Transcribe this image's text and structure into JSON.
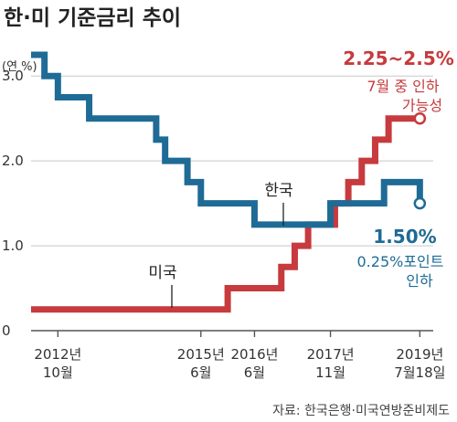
{
  "title": "한·미 기준금리 추이",
  "source": "자료: 한국은행·미국연방준비제도",
  "colors": {
    "korea": "#1e6b96",
    "usa": "#c73a3d",
    "grid": "#c8c8c8",
    "axis": "#555555"
  },
  "chart_data": {
    "type": "line",
    "step": true,
    "unit_label": "(연 %)",
    "ylim": [
      0,
      3.25
    ],
    "yticks": [
      0,
      1.0,
      2.0,
      3.0
    ],
    "ytick_labels": [
      "0",
      "1.0",
      "2.0",
      "3.0"
    ],
    "grid": "horizontal",
    "xlim": [
      "2012-04",
      "2019-10"
    ],
    "xticks": [
      {
        "x": "2012-10",
        "lines": [
          "2012년",
          "10월"
        ]
      },
      {
        "x": "2015-06",
        "lines": [
          "2015년",
          "6월"
        ]
      },
      {
        "x": "2016-06",
        "lines": [
          "2016년",
          "6월"
        ]
      },
      {
        "x": "2017-11",
        "lines": [
          "2017년",
          "11월"
        ]
      },
      {
        "x": "2019-07",
        "lines": [
          "2019년",
          "7월18일"
        ]
      }
    ],
    "series": [
      {
        "name": "한국",
        "color": "#1e6b96",
        "end_marker": "open-circle",
        "points": [
          [
            "2012-04",
            3.25
          ],
          [
            "2012-07",
            3.0
          ],
          [
            "2012-10",
            2.75
          ],
          [
            "2013-05",
            2.5
          ],
          [
            "2014-08",
            2.25
          ],
          [
            "2014-10",
            2.0
          ],
          [
            "2015-03",
            1.75
          ],
          [
            "2015-06",
            1.5
          ],
          [
            "2016-06",
            1.25
          ],
          [
            "2017-11",
            1.5
          ],
          [
            "2018-11",
            1.75
          ],
          [
            "2019-07",
            1.5
          ]
        ]
      },
      {
        "name": "미국",
        "color": "#c73a3d",
        "end_marker": "open-circle",
        "points": [
          [
            "2012-04",
            0.25
          ],
          [
            "2015-12",
            0.5
          ],
          [
            "2016-12",
            0.75
          ],
          [
            "2017-03",
            1.0
          ],
          [
            "2017-06",
            1.25
          ],
          [
            "2017-12",
            1.5
          ],
          [
            "2018-03",
            1.75
          ],
          [
            "2018-06",
            2.0
          ],
          [
            "2018-09",
            2.25
          ],
          [
            "2018-12",
            2.5
          ],
          [
            "2019-07",
            2.5
          ]
        ]
      }
    ],
    "annotations": {
      "usa": [
        "2.25~2.5%",
        "7월 중 인하",
        "가능성"
      ],
      "korea": [
        "1.50%",
        "0.25%포인트",
        "인하"
      ]
    }
  }
}
